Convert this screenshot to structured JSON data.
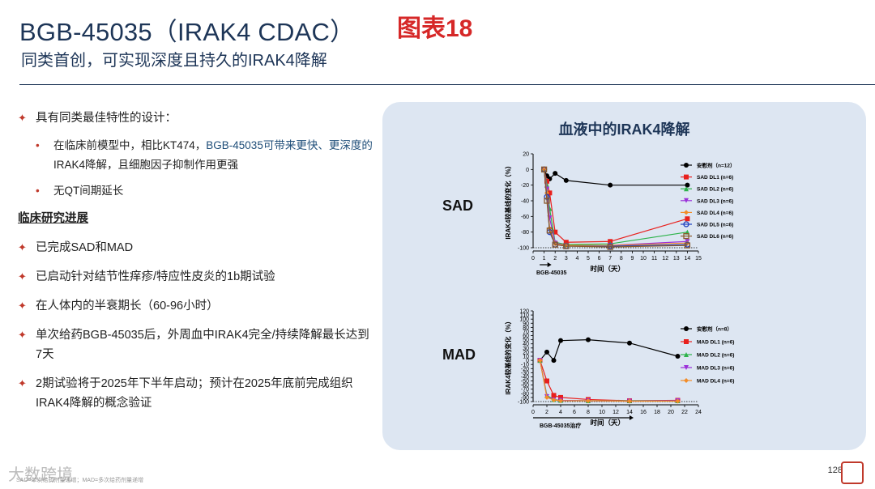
{
  "header": {
    "title": "BGB-45035（IRAK4 CDAC）",
    "chart_tag": "图表18",
    "subtitle": "同类首创，可实现深度且持久的IRAK4降解"
  },
  "left": {
    "item1": "具有同类最佳特性的设计：",
    "sub1_a": "在临床前模型中，相比KT474，",
    "sub1_b": "BGB-45035可带来更快、更深度的",
    "sub1_c": "IRAK4降解，且细胞因子抑制作用更强",
    "sub2": "无QT间期延长",
    "heading": "临床研究进展",
    "item2": "已完成SAD和MAD",
    "item3": "已启动针对结节性痒疹/特应性皮炎的1b期试验",
    "item4": "在人体内的半衰期长（60-96小时）",
    "item5": "单次给药BGB-45035后，外周血中IRAK4完全/持续降解最长达到7天",
    "item6": "2期试验将于2025年下半年启动；预计在2025年底前完成组织IRAK4降解的概念验证"
  },
  "panel": {
    "title": "血液中的IRAK4降解",
    "sad_label": "SAD",
    "mad_label": "MAD"
  },
  "page_number": "128",
  "watermark": "大数跨境",
  "footnote": "SAD=单次给药剂量递增；MAD=多次给药剂量递增",
  "colors": {
    "placebo": "#000000",
    "dl1": "#e8201d",
    "dl2": "#2db34a",
    "dl3": "#9b30d9",
    "dl4": "#f28c28",
    "dl5": "#1f3fbf",
    "dl6": "#8b5a2b"
  },
  "chart_data": [
    {
      "type": "line",
      "name": "SAD",
      "ylabel": "IRAK4较基线的变化（%）",
      "xlabel": "时间（天）",
      "dosing_label": "BGB-45035",
      "xlim": [
        0,
        15
      ],
      "ylim": [
        -100,
        20
      ],
      "xticks": [
        0,
        1,
        2,
        3,
        4,
        5,
        6,
        7,
        8,
        9,
        10,
        11,
        12,
        13,
        14,
        15
      ],
      "yticks": [
        20,
        0,
        -20,
        -40,
        -60,
        -80,
        -100
      ],
      "series": [
        {
          "name": "安慰剂（n=12）",
          "color": "#000000",
          "marker": "circle-filled",
          "x": [
            1,
            1.25,
            1.5,
            2,
            3,
            7,
            14
          ],
          "y": [
            0,
            -8,
            -12,
            -5,
            -14,
            -20,
            -20
          ]
        },
        {
          "name": "SAD DL1 (n=6)",
          "color": "#e8201d",
          "marker": "square",
          "x": [
            1,
            1.25,
            1.5,
            2,
            3,
            7,
            14
          ],
          "y": [
            0,
            -15,
            -30,
            -80,
            -93,
            -92,
            -63
          ]
        },
        {
          "name": "SAD DL2 (n=6)",
          "color": "#2db34a",
          "marker": "triangle-up",
          "x": [
            1,
            1.25,
            1.5,
            2,
            3,
            7,
            14
          ],
          "y": [
            0,
            -20,
            -50,
            -93,
            -96,
            -95,
            -80
          ]
        },
        {
          "name": "SAD DL3 (n=6)",
          "color": "#9b30d9",
          "marker": "triangle-down",
          "x": [
            1,
            1.25,
            1.5,
            2,
            3,
            7,
            14
          ],
          "y": [
            0,
            -25,
            -62,
            -94,
            -97,
            -97,
            -92
          ]
        },
        {
          "name": "SAD DL4 (n=6)",
          "color": "#f28c28",
          "marker": "diamond",
          "x": [
            1,
            1.25,
            1.5,
            2,
            3,
            7,
            14
          ],
          "y": [
            0,
            -30,
            -75,
            -95,
            -97,
            -97,
            -94
          ]
        },
        {
          "name": "SAD DL5 (n=6)",
          "color": "#1f3fbf",
          "marker": "circle-open",
          "x": [
            1,
            1.25,
            1.5,
            2,
            3,
            7,
            14
          ],
          "y": [
            0,
            -35,
            -80,
            -96,
            -98,
            -98,
            -96
          ]
        },
        {
          "name": "SAD DL6 (n=6)",
          "color": "#8b5a2b",
          "marker": "square-open",
          "x": [
            1,
            1.25,
            1.5,
            2,
            3,
            7,
            14
          ],
          "y": [
            0,
            -40,
            -78,
            -96,
            -98,
            -99,
            -97
          ]
        }
      ]
    },
    {
      "type": "line",
      "name": "MAD",
      "ylabel": "IRAK4较基线的变化（%）",
      "xlabel": "时间（天）",
      "dosing_label": "BGB-45035治疗",
      "xlim": [
        0,
        24
      ],
      "ylim": [
        -100,
        120
      ],
      "xticks": [
        0,
        2,
        4,
        6,
        8,
        10,
        12,
        14,
        16,
        18,
        20,
        22,
        24
      ],
      "yticks": [
        120,
        110,
        100,
        90,
        80,
        70,
        60,
        50,
        40,
        30,
        20,
        10,
        0,
        -10,
        -20,
        -30,
        -40,
        -50,
        -60,
        -70,
        -80,
        -90,
        -100
      ],
      "series": [
        {
          "name": "安慰剂（n=8）",
          "color": "#000000",
          "marker": "circle-filled",
          "x": [
            1,
            2,
            3,
            4,
            8,
            14,
            21
          ],
          "y": [
            0,
            20,
            0,
            48,
            50,
            42,
            10
          ]
        },
        {
          "name": "MAD DL1 (n=6)",
          "color": "#e8201d",
          "marker": "square",
          "x": [
            1,
            2,
            3,
            4,
            8,
            14,
            21
          ],
          "y": [
            0,
            -50,
            -85,
            -90,
            -95,
            -98,
            -97
          ]
        },
        {
          "name": "MAD DL2 (n=6)",
          "color": "#2db34a",
          "marker": "triangle-up",
          "x": [
            1,
            2,
            3,
            4,
            8,
            14,
            21
          ],
          "y": [
            0,
            -85,
            -95,
            -97,
            -98,
            -98,
            -98
          ]
        },
        {
          "name": "MAD DL3 (n=6)",
          "color": "#9b30d9",
          "marker": "triangle-down",
          "x": [
            1,
            2,
            3,
            4,
            8,
            14,
            21
          ],
          "y": [
            0,
            -88,
            -96,
            -97,
            -98,
            -99,
            -98
          ]
        },
        {
          "name": "MAD DL4 (n=6)",
          "color": "#f28c28",
          "marker": "diamond",
          "x": [
            1,
            2,
            3,
            4,
            8,
            14,
            21
          ],
          "y": [
            0,
            -90,
            -96,
            -98,
            -98,
            -99,
            -99
          ]
        }
      ]
    }
  ]
}
